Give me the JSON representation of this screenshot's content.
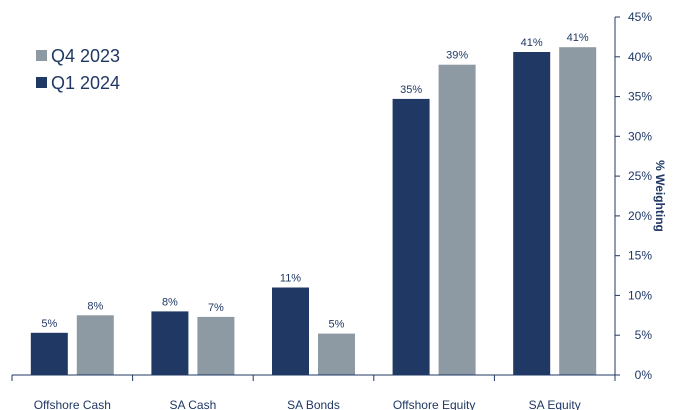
{
  "chart_data": {
    "type": "bar",
    "categories": [
      "Offshore Cash",
      "SA Cash",
      "SA Bonds",
      "Offshore Equity",
      "SA Equity"
    ],
    "series": [
      {
        "name": "Q1 2024",
        "color": "#1f3864",
        "values": [
          5.3,
          8.0,
          11.0,
          34.7,
          40.6
        ],
        "labels": [
          "5%",
          "8%",
          "11%",
          "35%",
          "41%"
        ]
      },
      {
        "name": "Q4 2023",
        "color": "#8e9aa3",
        "values": [
          7.5,
          7.3,
          5.2,
          39.0,
          41.2
        ],
        "labels": [
          "8%",
          "7%",
          "5%",
          "39%",
          "41%"
        ]
      }
    ],
    "legend": [
      {
        "name": "Q4 2023",
        "color": "#8e9aa3"
      },
      {
        "name": "Q1 2024",
        "color": "#1f3864"
      }
    ],
    "ylabel": "% Weighting",
    "ylim": [
      0,
      45
    ],
    "yticks": [
      0,
      5,
      10,
      15,
      20,
      25,
      30,
      35,
      40,
      45
    ],
    "ytick_labels": [
      "0%",
      "5%",
      "10%",
      "15%",
      "20%",
      "25%",
      "30%",
      "35%",
      "40%",
      "45%"
    ],
    "y_axis_position": "right",
    "legend_position": "top-left",
    "grid": false
  }
}
